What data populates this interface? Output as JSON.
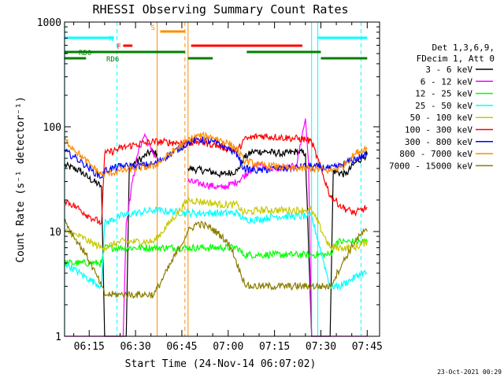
{
  "chart_data": {
    "type": "line",
    "title": "RHESSI Observing Summary Count Rates",
    "xlabel": "Start Time (24-Nov-14 06:07:02)",
    "ylabel": "Count Rate (s⁻¹ detector⁻¹)",
    "y_scale": "log",
    "ylim": [
      1,
      1000
    ],
    "y_ticks": [
      1,
      10,
      100,
      1000
    ],
    "y_tick_labels": [
      "1",
      "10",
      "100",
      "1000"
    ],
    "x_range": [
      "06:07:02",
      "07:49:00"
    ],
    "x_ticks": [
      "06:15",
      "06:30",
      "06:45",
      "07:00",
      "07:15",
      "07:30",
      "07:45"
    ],
    "x_tick_labels": [
      "06:15",
      "06:30",
      "06:45",
      "07:00",
      "07:15",
      "07:30",
      "07:45"
    ],
    "x_minor_tick_minutes": 5,
    "legend_position": "right, outside plot",
    "legend_header": [
      "Det 1,3,6,9,",
      "FDecim 1, Att 0"
    ],
    "timestamp": "23-Oct-2021 00:29",
    "data_gaps": [
      [
        "06:37",
        "06:47"
      ],
      [
        "07:28",
        "07:33"
      ]
    ],
    "series": [
      {
        "name": "3 - 6 keV",
        "color": "#000000",
        "points": [
          [
            "06:07",
            43
          ],
          [
            "06:12",
            38
          ],
          [
            "06:15",
            32
          ],
          [
            "06:19",
            27
          ],
          [
            "06:20",
            1
          ],
          [
            "06:27",
            1
          ],
          [
            "06:28",
            42
          ],
          [
            "06:32",
            50
          ],
          [
            "06:35",
            58
          ],
          [
            "06:37",
            55
          ],
          [
            "06:47",
            40
          ],
          [
            "06:53",
            38
          ],
          [
            "06:58",
            35
          ],
          [
            "07:03",
            38
          ],
          [
            "07:05",
            50
          ],
          [
            "07:08",
            58
          ],
          [
            "07:12",
            58
          ],
          [
            "07:18",
            55
          ],
          [
            "07:22",
            58
          ],
          [
            "07:25",
            56
          ],
          [
            "07:27",
            1
          ],
          [
            "07:33",
            1
          ],
          [
            "07:34",
            38
          ],
          [
            "07:38",
            35
          ],
          [
            "07:41",
            45
          ],
          [
            "07:44",
            52
          ],
          [
            "07:45",
            55
          ]
        ]
      },
      {
        "name": "6 - 12 keV",
        "color": "#ff00ff",
        "points": [
          [
            "06:07",
            1
          ],
          [
            "06:26",
            1
          ],
          [
            "06:27",
            12
          ],
          [
            "06:29",
            30
          ],
          [
            "06:31",
            60
          ],
          [
            "06:33",
            85
          ],
          [
            "06:35",
            60
          ],
          [
            "06:37",
            50
          ],
          [
            "06:47",
            30
          ],
          [
            "06:53",
            28
          ],
          [
            "06:58",
            26
          ],
          [
            "07:03",
            30
          ],
          [
            "07:07",
            38
          ],
          [
            "07:10",
            45
          ],
          [
            "07:13",
            40
          ],
          [
            "07:18",
            40
          ],
          [
            "07:22",
            42
          ],
          [
            "07:25",
            120
          ],
          [
            "07:26",
            45
          ],
          [
            "07:27",
            1
          ],
          [
            "07:45",
            1
          ]
        ]
      },
      {
        "name": "12 - 25 keV",
        "color": "#00ff00",
        "points": [
          [
            "06:07",
            5
          ],
          [
            "06:12",
            5
          ],
          [
            "06:17",
            5
          ],
          [
            "06:19",
            5
          ],
          [
            "06:20",
            7
          ],
          [
            "06:25",
            7
          ],
          [
            "06:30",
            7
          ],
          [
            "06:36",
            7
          ],
          [
            "06:47",
            7
          ],
          [
            "06:53",
            7
          ],
          [
            "06:58",
            7
          ],
          [
            "07:03",
            7
          ],
          [
            "07:05",
            6
          ],
          [
            "07:10",
            6
          ],
          [
            "07:15",
            6
          ],
          [
            "07:20",
            6
          ],
          [
            "07:25",
            6
          ],
          [
            "07:27",
            6
          ],
          [
            "07:33",
            6
          ],
          [
            "07:35",
            8
          ],
          [
            "07:38",
            8
          ],
          [
            "07:41",
            8
          ],
          [
            "07:45",
            8
          ]
        ]
      },
      {
        "name": "25 - 50 keV",
        "color": "#00ffff",
        "points": [
          [
            "06:07",
            5
          ],
          [
            "06:12",
            4
          ],
          [
            "06:15",
            3.5
          ],
          [
            "06:19",
            3
          ],
          [
            "06:20",
            12
          ],
          [
            "06:25",
            14
          ],
          [
            "06:30",
            15
          ],
          [
            "06:36",
            16
          ],
          [
            "06:47",
            15
          ],
          [
            "06:53",
            15
          ],
          [
            "06:58",
            15
          ],
          [
            "07:03",
            15
          ],
          [
            "07:05",
            13
          ],
          [
            "07:10",
            13
          ],
          [
            "07:15",
            14
          ],
          [
            "07:20",
            14
          ],
          [
            "07:25",
            14
          ],
          [
            "07:27",
            14
          ],
          [
            "07:33",
            3
          ],
          [
            "07:36",
            3
          ],
          [
            "07:40",
            3.5
          ],
          [
            "07:43",
            4
          ],
          [
            "07:45",
            4
          ]
        ]
      },
      {
        "name": "50 - 100 keV",
        "color": "#c8c800",
        "points": [
          [
            "06:07",
            10
          ],
          [
            "06:12",
            9
          ],
          [
            "06:15",
            8
          ],
          [
            "06:19",
            7
          ],
          [
            "06:20",
            7
          ],
          [
            "06:25",
            8
          ],
          [
            "06:30",
            8
          ],
          [
            "06:36",
            8
          ],
          [
            "06:47",
            20
          ],
          [
            "06:53",
            19
          ],
          [
            "06:58",
            18
          ],
          [
            "07:03",
            18
          ],
          [
            "07:05",
            15
          ],
          [
            "07:10",
            16
          ],
          [
            "07:15",
            16
          ],
          [
            "07:20",
            16
          ],
          [
            "07:25",
            16
          ],
          [
            "07:27",
            16
          ],
          [
            "07:33",
            7
          ],
          [
            "07:37",
            7
          ],
          [
            "07:41",
            7
          ],
          [
            "07:45",
            8
          ]
        ]
      },
      {
        "name": "100 - 300 keV",
        "color": "#ff0000",
        "points": [
          [
            "06:07",
            20
          ],
          [
            "06:11",
            17
          ],
          [
            "06:15",
            14
          ],
          [
            "06:19",
            12
          ],
          [
            "06:20",
            55
          ],
          [
            "06:25",
            62
          ],
          [
            "06:30",
            68
          ],
          [
            "06:36",
            72
          ],
          [
            "06:47",
            70
          ],
          [
            "06:50",
            72
          ],
          [
            "06:55",
            68
          ],
          [
            "07:00",
            62
          ],
          [
            "07:03",
            58
          ],
          [
            "07:05",
            75
          ],
          [
            "07:10",
            82
          ],
          [
            "07:15",
            80
          ],
          [
            "07:20",
            78
          ],
          [
            "07:25",
            76
          ],
          [
            "07:27",
            72
          ],
          [
            "07:33",
            22
          ],
          [
            "07:37",
            17
          ],
          [
            "07:41",
            15
          ],
          [
            "07:45",
            17
          ]
        ]
      },
      {
        "name": "300 - 800 keV",
        "color": "#0000ff",
        "points": [
          [
            "06:07",
            58
          ],
          [
            "06:10",
            52
          ],
          [
            "06:13",
            45
          ],
          [
            "06:16",
            38
          ],
          [
            "06:19",
            33
          ],
          [
            "06:20",
            38
          ],
          [
            "06:25",
            42
          ],
          [
            "06:30",
            42
          ],
          [
            "06:36",
            44
          ],
          [
            "06:47",
            70
          ],
          [
            "06:50",
            76
          ],
          [
            "06:55",
            72
          ],
          [
            "07:00",
            62
          ],
          [
            "07:03",
            55
          ],
          [
            "07:05",
            40
          ],
          [
            "07:10",
            38
          ],
          [
            "07:15",
            40
          ],
          [
            "07:20",
            40
          ],
          [
            "07:25",
            42
          ],
          [
            "07:27",
            42
          ],
          [
            "07:33",
            40
          ],
          [
            "07:36",
            42
          ],
          [
            "07:40",
            48
          ],
          [
            "07:43",
            52
          ],
          [
            "07:45",
            55
          ]
        ]
      },
      {
        "name": "800 - 7000 keV",
        "color": "#ff8c00",
        "points": [
          [
            "06:07",
            75
          ],
          [
            "06:10",
            62
          ],
          [
            "06:13",
            50
          ],
          [
            "06:16",
            42
          ],
          [
            "06:19",
            35
          ],
          [
            "06:20",
            35
          ],
          [
            "06:25",
            38
          ],
          [
            "06:30",
            40
          ],
          [
            "06:36",
            42
          ],
          [
            "06:47",
            75
          ],
          [
            "06:50",
            82
          ],
          [
            "06:55",
            80
          ],
          [
            "07:00",
            70
          ],
          [
            "07:03",
            60
          ],
          [
            "07:05",
            48
          ],
          [
            "07:10",
            43
          ],
          [
            "07:15",
            42
          ],
          [
            "07:20",
            40
          ],
          [
            "07:25",
            40
          ],
          [
            "07:27",
            40
          ],
          [
            "07:33",
            38
          ],
          [
            "07:37",
            42
          ],
          [
            "07:41",
            55
          ],
          [
            "07:44",
            62
          ],
          [
            "07:45",
            62
          ]
        ]
      },
      {
        "name": "7000 - 15000 keV",
        "color": "#8b7d00",
        "points": [
          [
            "06:07",
            13
          ],
          [
            "06:10",
            9
          ],
          [
            "06:14",
            6
          ],
          [
            "06:17",
            4
          ],
          [
            "06:19",
            3
          ],
          [
            "06:20",
            2.5
          ],
          [
            "06:25",
            2.5
          ],
          [
            "06:30",
            2.5
          ],
          [
            "06:36",
            2.5
          ],
          [
            "06:47",
            10
          ],
          [
            "06:50",
            12
          ],
          [
            "06:54",
            11
          ],
          [
            "06:58",
            9
          ],
          [
            "07:01",
            7
          ],
          [
            "07:04",
            4
          ],
          [
            "07:06",
            3
          ],
          [
            "07:12",
            3
          ],
          [
            "07:18",
            3
          ],
          [
            "07:24",
            3
          ],
          [
            "07:27",
            3
          ],
          [
            "07:33",
            3
          ],
          [
            "07:37",
            5
          ],
          [
            "07:41",
            8
          ],
          [
            "07:44",
            10
          ],
          [
            "07:45",
            10
          ]
        ]
      }
    ],
    "vertical_markers": [
      {
        "time": "06:07",
        "color": "#00ffff",
        "style": "solid"
      },
      {
        "time": "06:24",
        "color": "#00ffff",
        "style": "dashed"
      },
      {
        "time": "06:37",
        "color": "#ff8c00",
        "style": "solid"
      },
      {
        "time": "06:46",
        "color": "#ff8c00",
        "style": "dashed"
      },
      {
        "time": "06:47",
        "color": "#ff8c00",
        "style": "solid"
      },
      {
        "time": "07:27",
        "color": "#00ffff",
        "style": "solid"
      },
      {
        "time": "07:29",
        "color": "#00ffff",
        "style": "solid"
      },
      {
        "time": "07:43",
        "color": "#00ffff",
        "style": "dashed"
      }
    ],
    "flag_bars": [
      {
        "label": "N",
        "color": "#00ffff",
        "segments": [
          [
            "06:07",
            "06:23"
          ],
          [
            "07:29",
            "07:45"
          ]
        ]
      },
      {
        "label": "S",
        "color": "#ff8c00",
        "segments": [
          [
            "06:38",
            "06:46"
          ]
        ]
      },
      {
        "label": "F",
        "color": "#ff0000",
        "segments": [
          [
            "06:26",
            "06:29"
          ],
          [
            "06:48",
            "07:24"
          ]
        ]
      },
      {
        "label": "RD0",
        "color": "#008000",
        "segments": [
          [
            "06:07",
            "06:46"
          ],
          [
            "07:06",
            "07:30"
          ]
        ]
      },
      {
        "label": "RD6",
        "color": "#008000",
        "segments": [
          [
            "06:07",
            "06:14"
          ],
          [
            "06:47",
            "06:55"
          ],
          [
            "07:30",
            "07:45"
          ]
        ]
      }
    ]
  }
}
